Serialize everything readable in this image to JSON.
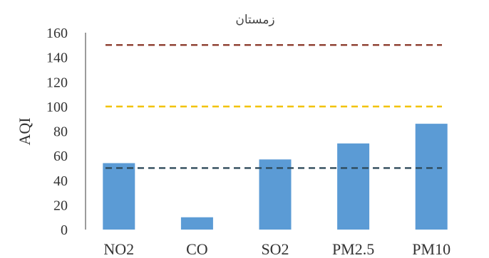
{
  "chart_data": {
    "type": "bar",
    "title": "زمستان",
    "xlabel": "",
    "ylabel": "AQI",
    "ylim": [
      0,
      160
    ],
    "yticks": [
      0,
      20,
      40,
      60,
      80,
      100,
      120,
      140,
      160
    ],
    "categories": [
      "NO2",
      "CO",
      "SO2",
      "PM2.5",
      "PM10"
    ],
    "values": [
      54,
      10,
      57,
      70,
      86
    ],
    "bar_color": "#5b9bd5",
    "grid": false,
    "legend": "none",
    "reference_lines": [
      {
        "value": 150,
        "color": "#8b3a2b",
        "style": "dashed"
      },
      {
        "value": 100,
        "color": "#f2c200",
        "style": "dashed"
      },
      {
        "value": 50,
        "color": "#2f4a5a",
        "style": "dashed"
      }
    ]
  }
}
